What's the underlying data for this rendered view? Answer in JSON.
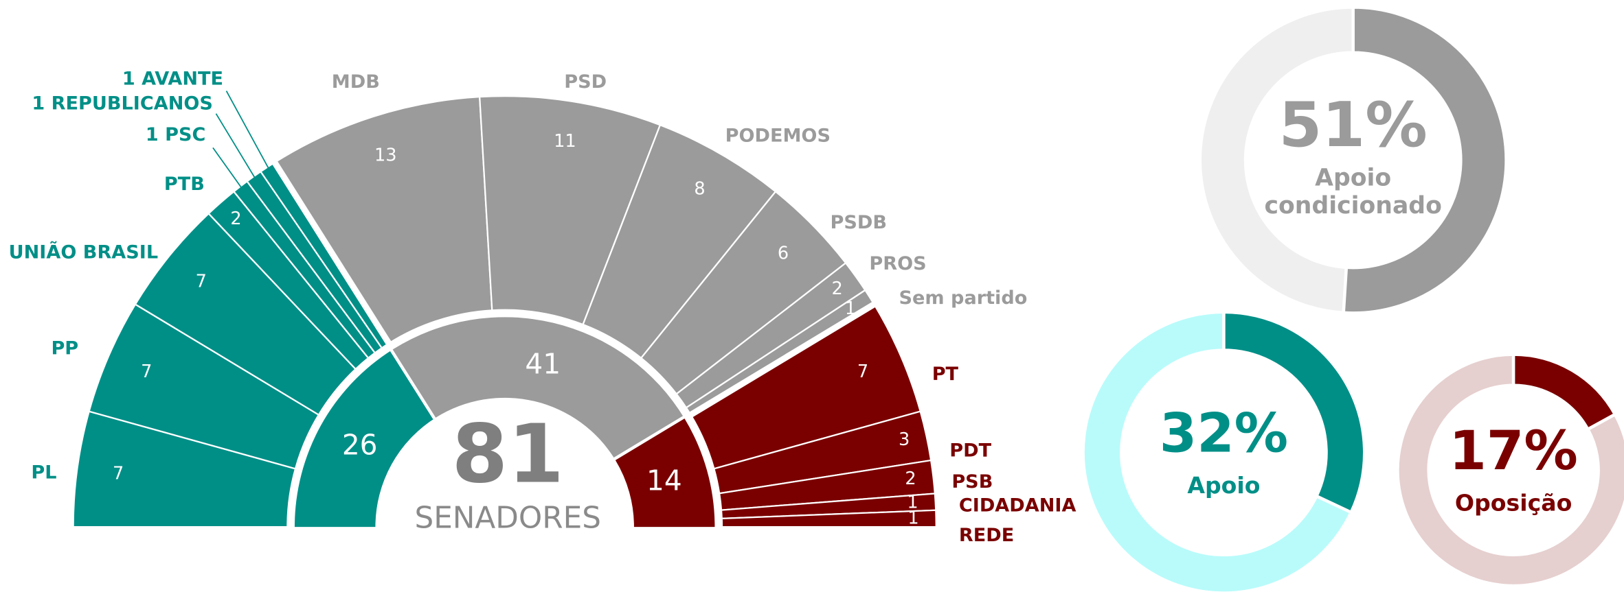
{
  "chart_data": [
    {
      "type": "parliament",
      "categories": [
        "PL",
        "PP",
        "UNIÃO BRASIL",
        "PTB",
        "1 PSC",
        "1 REPUBLICANOS",
        "1 AVANTE",
        "MDB",
        "PSD",
        "PODEMOS",
        "PSDB",
        "PROS",
        "Sem partido",
        "PT",
        "PDT",
        "PSB",
        "CIDADANIA",
        "REDE"
      ],
      "values": [
        7,
        7,
        7,
        2,
        1,
        1,
        1,
        13,
        11,
        8,
        6,
        2,
        1,
        7,
        3,
        2,
        1,
        1
      ],
      "colors": [
        "#008f87",
        "#008f87",
        "#008f87",
        "#008f87",
        "#008f87",
        "#008f87",
        "#008f87",
        "#9b9b9b",
        "#9b9b9b",
        "#9b9b9b",
        "#9b9b9b",
        "#9b9b9b",
        "#9b9b9b",
        "#7a0000",
        "#7a0000",
        "#7a0000",
        "#7a0000",
        "#7a0000"
      ],
      "groups": {
        "values": [
          26,
          41,
          14
        ],
        "colors": [
          "#008f87",
          "#9b9b9b",
          "#7a0000"
        ]
      },
      "total": 81,
      "total_label": "SENADORES"
    },
    {
      "type": "donut",
      "values": [
        51
      ],
      "value_labels": [
        "51%"
      ],
      "label": [
        "Apoio",
        "condicionado"
      ],
      "color": "#9b9b9b",
      "track_color": "#efefef"
    },
    {
      "type": "donut",
      "values": [
        32
      ],
      "value_labels": [
        "32%"
      ],
      "label": [
        "Apoio"
      ],
      "color": "#008f87",
      "track_color": "#b9fbfb"
    },
    {
      "type": "donut",
      "values": [
        17
      ],
      "value_labels": [
        "17%"
      ],
      "label": [
        "Oposição"
      ],
      "color": "#7a0000",
      "track_color": "#e6cfcf"
    }
  ]
}
